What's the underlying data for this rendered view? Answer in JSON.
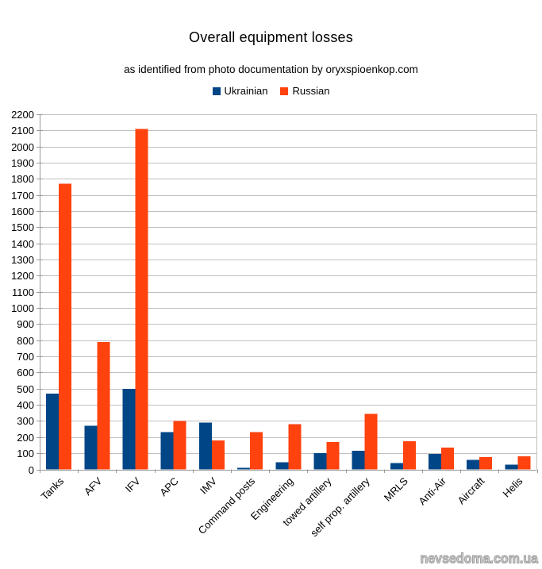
{
  "title": "Overall equipment losses",
  "subtitle": "as identified from photo documentation by oryxspioenkop.com",
  "watermark": "nevsedoma.com.ua",
  "colors": {
    "ukrainian": "#004586",
    "russian": "#FF420E",
    "gridline": "#c0c0c0",
    "axis": "#9a9a9a",
    "text": "#000000"
  },
  "chart_data": {
    "type": "bar",
    "title": "Overall equipment losses",
    "subtitle": "as identified from photo documentation by oryxspioenkop.com",
    "categories": [
      "Tanks",
      "AFV",
      "IFV",
      "APC",
      "IMV",
      "Command posts",
      "Engineering",
      "towed artillery",
      "self prop. artillery",
      "MRLS",
      "Anti-Air",
      "Aircraft",
      "Helis"
    ],
    "series": [
      {
        "name": "Ukrainian",
        "color": "#004586",
        "values": [
          470,
          270,
          500,
          230,
          290,
          10,
          45,
          100,
          115,
          40,
          95,
          60,
          30
        ]
      },
      {
        "name": "Russian",
        "color": "#FF420E",
        "values": [
          1770,
          790,
          2110,
          300,
          180,
          230,
          280,
          170,
          345,
          175,
          135,
          75,
          80
        ]
      }
    ],
    "xlabel": "",
    "ylabel": "",
    "ylim": [
      0,
      2200
    ],
    "ytick_step": 100,
    "grid": true,
    "legend_position": "top",
    "x_label_rotation_deg": -45
  }
}
